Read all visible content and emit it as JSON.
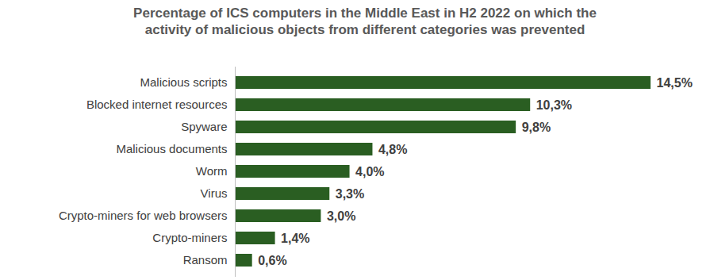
{
  "chart_data": {
    "type": "bar",
    "title": "Percentage of ICS computers in the Middle East in H2 2022 on which the activity of malicious objects from different categories was prevented",
    "orientation": "horizontal",
    "categories": [
      "Malicious scripts",
      "Blocked internet resources",
      "Spyware",
      "Malicious documents",
      "Worm",
      "Virus",
      "Crypto-miners for web browsers",
      "Crypto-miners",
      "Ransom"
    ],
    "values": [
      14.5,
      10.3,
      9.8,
      4.8,
      4.0,
      3.3,
      3.0,
      1.4,
      0.6
    ],
    "value_labels": [
      "14,5%",
      "10,3%",
      "9,8%",
      "4,8%",
      "4,0%",
      "3,3%",
      "3,0%",
      "1,4%",
      "0,6%"
    ],
    "color": "#2a5e22",
    "data_labels": true,
    "tick_labels": "y",
    "grid": false
  }
}
